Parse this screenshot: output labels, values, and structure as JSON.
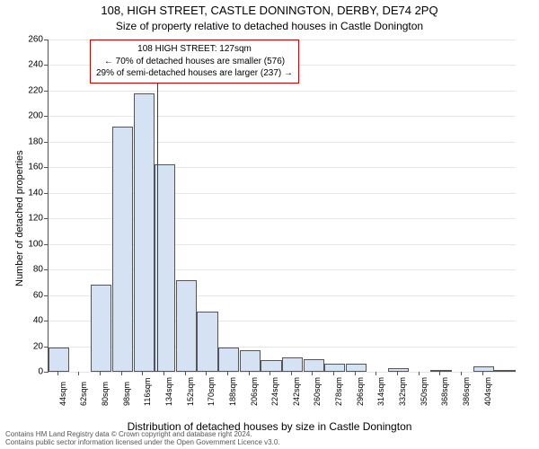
{
  "titles": {
    "address": "108, HIGH STREET, CASTLE DONINGTON, DERBY, DE74 2PQ",
    "subtitle": "Size of property relative to detached houses in Castle Donington"
  },
  "axes": {
    "ylabel": "Number of detached properties",
    "xlabel": "Distribution of detached houses by size in Castle Donington",
    "ylim": [
      0,
      260
    ],
    "ytick_step": 20,
    "x_start": 44,
    "x_step": 18,
    "x_count": 21,
    "x_unit": "sqm"
  },
  "chart": {
    "type": "histogram",
    "bar_fill": "#d5e2f4",
    "bar_stroke": "#555555",
    "grid_color": "#e6e6e6",
    "bar_width": 0.98,
    "marker": {
      "value": 127,
      "color": "#d40000"
    },
    "values": [
      19,
      0,
      68,
      192,
      218,
      162,
      72,
      47,
      19,
      17,
      9,
      11,
      10,
      6,
      6,
      0,
      3,
      0,
      1,
      0,
      4,
      1
    ]
  },
  "annotation": {
    "l1": "108 HIGH STREET: 127sqm",
    "l2": "← 70% of detached houses are smaller (576)",
    "l3": "29% of semi-detached houses are larger (237) →"
  },
  "license": {
    "l1": "Contains HM Land Registry data © Crown copyright and database right 2024.",
    "l2": "Contains public sector information licensed under the Open Government Licence v3.0."
  }
}
